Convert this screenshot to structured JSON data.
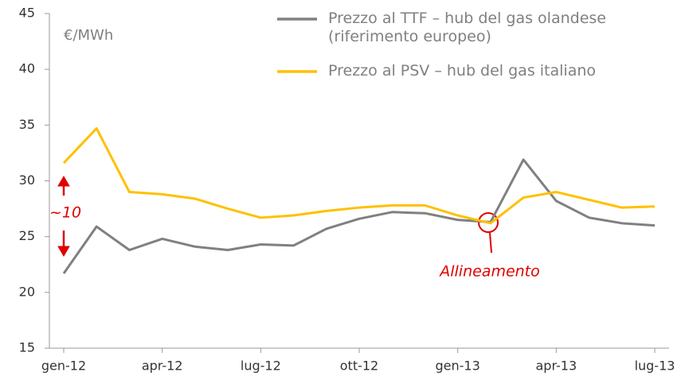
{
  "chart_data": {
    "type": "line",
    "unit_label": "€/MWh",
    "categories": [
      "gen-12",
      null,
      null,
      "apr-12",
      null,
      null,
      "lug-12",
      null,
      null,
      "ott-12",
      null,
      null,
      "gen-13",
      null,
      null,
      "apr-13",
      null,
      null,
      "lug-13"
    ],
    "series": [
      {
        "name": "Prezzo al TTF – hub del gas olandese (riferimento europeo)",
        "color": "#808080",
        "values": [
          21.7,
          25.9,
          23.8,
          24.8,
          24.1,
          23.8,
          24.3,
          24.2,
          25.7,
          26.6,
          27.2,
          27.1,
          26.5,
          26.3,
          31.9,
          28.2,
          26.7,
          26.2,
          26.0
        ]
      },
      {
        "name": "Prezzo al PSV – hub del gas italiano",
        "color": "#ffc000",
        "values": [
          31.6,
          34.7,
          29.0,
          28.8,
          28.4,
          27.5,
          26.7,
          26.9,
          27.3,
          27.6,
          27.8,
          27.8,
          26.9,
          26.2,
          28.5,
          29.0,
          28.3,
          27.6,
          27.7
        ]
      }
    ],
    "annotations": [
      {
        "text": "~10"
      },
      {
        "text": "Allineamento"
      }
    ],
    "ylim": [
      15,
      45
    ],
    "yticks": [
      15,
      20,
      25,
      30,
      35,
      40,
      45
    ],
    "grid": false
  }
}
